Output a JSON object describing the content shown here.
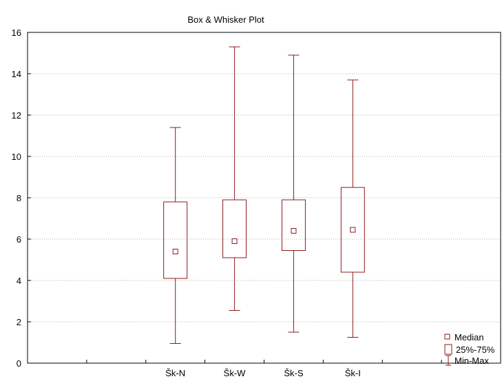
{
  "chart_data": {
    "type": "box",
    "title": "Box & Whisker Plot",
    "xlabel": "",
    "ylabel": "",
    "ylim": [
      0,
      16
    ],
    "yticks": [
      "0",
      "2",
      "4",
      "6",
      "8",
      "10",
      "12",
      "14",
      "16"
    ],
    "grid": true,
    "legend_position": "bottom-right",
    "categories": [
      "Šk-N",
      "Šk-W",
      "Šk-S",
      "Šk-I"
    ],
    "boxes": [
      {
        "category": "Šk-N",
        "min": 0.95,
        "q1": 4.1,
        "median": 5.4,
        "q3": 7.8,
        "max": 11.4
      },
      {
        "category": "Šk-W",
        "min": 2.55,
        "q1": 5.1,
        "median": 5.9,
        "q3": 7.9,
        "max": 15.3
      },
      {
        "category": "Šk-S",
        "min": 1.5,
        "q1": 5.45,
        "median": 6.4,
        "q3": 7.9,
        "max": 14.9
      },
      {
        "category": "Šk-I",
        "min": 1.25,
        "q1": 4.4,
        "median": 6.45,
        "q3": 8.5,
        "max": 13.7
      }
    ],
    "legend": {
      "median": "Median",
      "box": "25%-75%",
      "whisker": "Min-Max"
    },
    "colors": {
      "box": "#8b1a1a",
      "axis": "#000000",
      "grid": "#b0b0b0"
    }
  }
}
